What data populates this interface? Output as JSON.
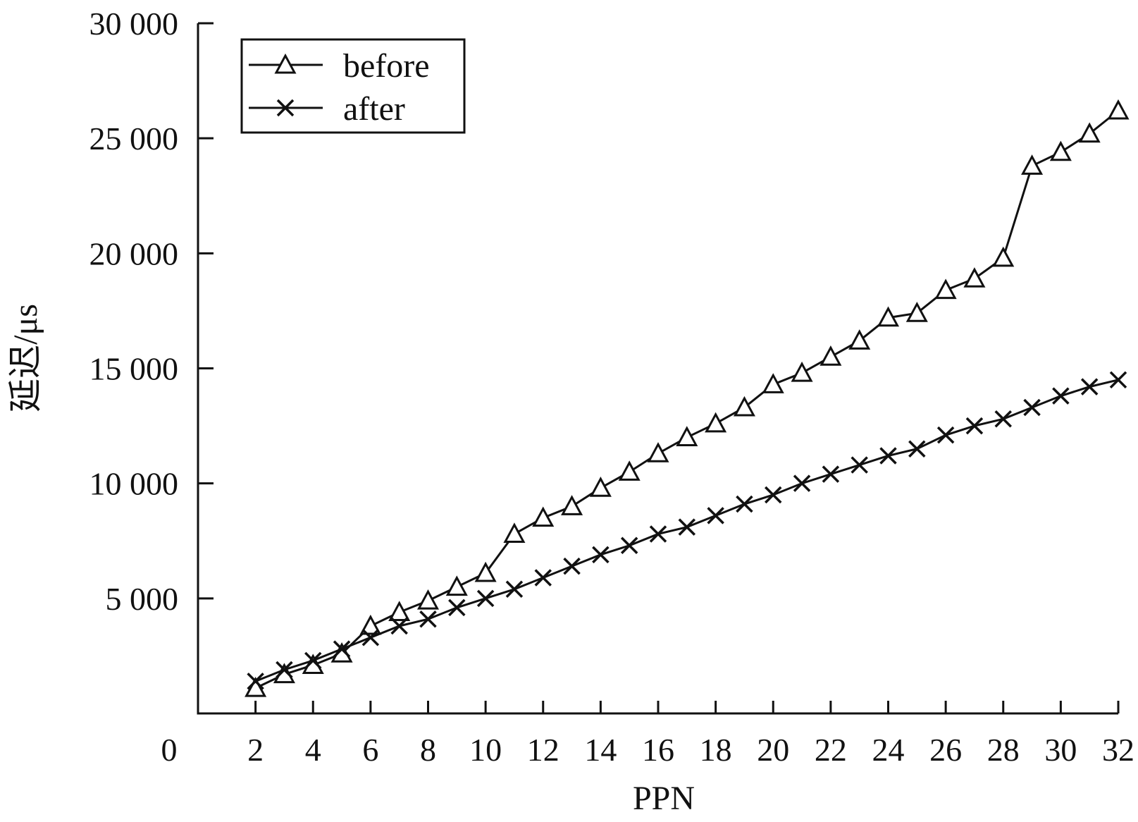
{
  "chart_data": {
    "type": "line",
    "xlabel": "PPN",
    "ylabel": "延迟/μs",
    "xlim": [
      0,
      32
    ],
    "ylim": [
      0,
      30000
    ],
    "x_ticks": [
      2,
      4,
      6,
      8,
      10,
      12,
      14,
      16,
      18,
      20,
      22,
      24,
      26,
      28,
      30,
      32
    ],
    "x_tick_labels": [
      "2",
      "4",
      "6",
      "8",
      "10",
      "12",
      "14",
      "16",
      "18",
      "20",
      "22",
      "24",
      "26",
      "28",
      "30",
      "32"
    ],
    "x_origin_label": "0",
    "y_ticks": [
      5000,
      10000,
      15000,
      20000,
      25000,
      30000
    ],
    "y_tick_labels": [
      "5 000",
      "10 000",
      "15 000",
      "20 000",
      "25 000",
      "30 000"
    ],
    "grid": false,
    "legend_position": "top-left",
    "x": [
      2,
      3,
      4,
      5,
      6,
      7,
      8,
      9,
      10,
      11,
      12,
      13,
      14,
      15,
      16,
      17,
      18,
      19,
      20,
      21,
      22,
      23,
      24,
      25,
      26,
      27,
      28,
      29,
      30,
      31,
      32
    ],
    "series": [
      {
        "name": "before",
        "marker": "triangle",
        "values": [
          1100,
          1700,
          2100,
          2600,
          3800,
          4400,
          4900,
          5500,
          6100,
          7800,
          8500,
          9000,
          9800,
          10500,
          11300,
          12000,
          12600,
          13300,
          14300,
          14800,
          15500,
          16200,
          17200,
          17400,
          18400,
          18900,
          19800,
          23800,
          24400,
          25200,
          26200
        ]
      },
      {
        "name": "after",
        "marker": "x",
        "values": [
          1400,
          1900,
          2300,
          2800,
          3300,
          3800,
          4100,
          4600,
          5000,
          5400,
          5900,
          6400,
          6900,
          7300,
          7800,
          8100,
          8600,
          9100,
          9500,
          10000,
          10400,
          10800,
          11200,
          11500,
          12100,
          12500,
          12800,
          13300,
          13800,
          14200,
          14500
        ]
      }
    ]
  }
}
